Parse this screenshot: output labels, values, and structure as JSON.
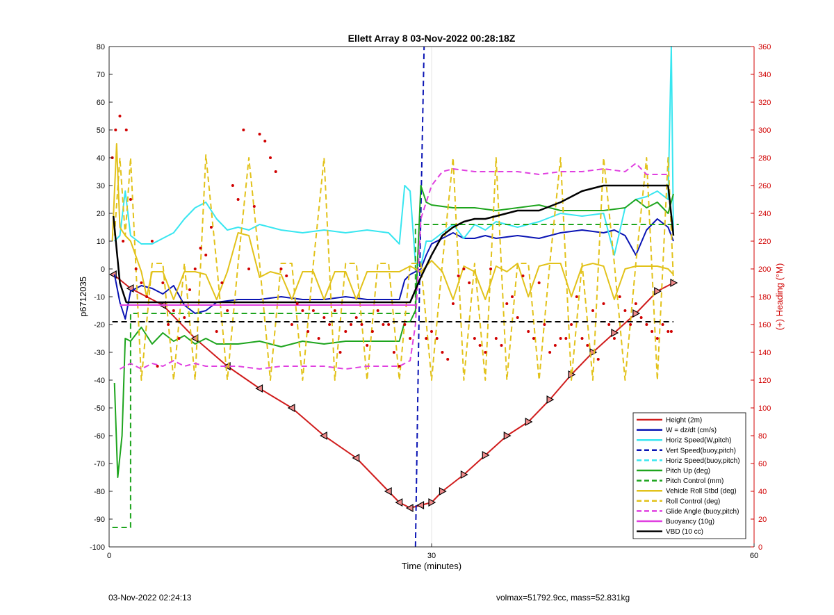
{
  "chart_data": {
    "type": "line",
    "title": "Ellett Array 8 03-Nov-2022 00:28:18Z",
    "xlabel": "Time (minutes)",
    "ylabel": "p6712035",
    "y2label": "(+) Heading (°M)",
    "xlim": [
      0,
      60
    ],
    "ylim": [
      -100,
      80
    ],
    "y2lim": [
      0,
      360
    ],
    "xticks": [
      "0",
      "30",
      "60"
    ],
    "yticks": [
      "-100",
      "-90",
      "-80",
      "-70",
      "-60",
      "-50",
      "-40",
      "-30",
      "-20",
      "-10",
      "0",
      "10",
      "20",
      "30",
      "40",
      "50",
      "60",
      "70",
      "80"
    ],
    "y2ticks": [
      "0",
      "20",
      "40",
      "60",
      "80",
      "100",
      "120",
      "140",
      "160",
      "180",
      "200",
      "220",
      "240",
      "260",
      "280",
      "300",
      "320",
      "340",
      "360"
    ],
    "grid": "vertical line at 30",
    "legend_position": "bottom-right",
    "colors": {
      "height": "#d01c1c",
      "w": "#0a14b4",
      "horiz_w": "#38e6f0",
      "vert_buoy": "#0a14b4",
      "horiz_buoy": "#38e6f0",
      "pitch": "#1ea51e",
      "pitch_ctrl": "#1ea51e",
      "roll": "#e2c21a",
      "roll_ctrl": "#e2c21a",
      "glide": "#e040e0",
      "buoyancy": "#e040e0",
      "vbd": "#000000",
      "heading": "#d00000",
      "right_axis": "#d00000"
    },
    "series": [
      {
        "key": "height",
        "name": "Height (2m)",
        "style": "solid",
        "marker": "triangle",
        "x": [
          0.4,
          2,
          5,
          8,
          11,
          14,
          17,
          20,
          23,
          26,
          27,
          28,
          29,
          30,
          31,
          33,
          35,
          37,
          39,
          41,
          43,
          45,
          47,
          49,
          51,
          52.5
        ],
        "y": [
          -2,
          -7,
          -13,
          -25,
          -35,
          -43,
          -50,
          -60,
          -68,
          -80,
          -84,
          -86,
          -85,
          -84,
          -80,
          -74,
          -67,
          -60,
          -55,
          -47,
          -38,
          -30,
          -23,
          -16,
          -8,
          -5
        ]
      },
      {
        "key": "w",
        "name": "W = dz/dt (cm/s)",
        "style": "solid",
        "x": [
          0.5,
          1,
          1.5,
          2,
          3,
          4,
          5,
          6,
          7,
          8,
          9,
          10,
          12,
          14,
          16,
          18,
          20,
          22,
          24,
          26,
          27,
          27.5,
          28,
          29,
          29.5,
          30,
          31,
          32,
          33,
          34,
          35,
          36,
          38,
          40,
          42,
          44,
          46,
          47,
          48,
          49,
          50,
          51,
          52,
          52.5
        ],
        "y": [
          -2,
          -12,
          -18,
          -8,
          -6,
          -7,
          -9,
          -6,
          -13,
          -16,
          -15,
          -12,
          -11,
          -11,
          -10,
          -11,
          -11,
          -10,
          -11,
          -11,
          -11,
          -4,
          -2,
          0,
          5,
          9,
          11,
          13,
          11,
          11,
          12,
          11,
          12,
          11,
          13,
          14,
          13,
          14,
          12,
          5,
          14,
          18,
          15,
          10
        ]
      },
      {
        "key": "horiz_w",
        "name": "Horiz Speed(W,pitch)",
        "style": "solid",
        "x": [
          0.5,
          1,
          1.5,
          2,
          3,
          4,
          5,
          6,
          7,
          8,
          9,
          10,
          11,
          12,
          13,
          14,
          16,
          18,
          20,
          22,
          24,
          26,
          27,
          27.5,
          28,
          28.5,
          29,
          29.5,
          30,
          31,
          32,
          33,
          34,
          35,
          36,
          38,
          40,
          42,
          44,
          46,
          47,
          48,
          49,
          50,
          51,
          52,
          52.3,
          52.5
        ],
        "y": [
          10,
          12,
          28,
          12,
          9,
          9,
          11,
          13,
          18,
          22,
          24,
          18,
          14,
          15,
          14,
          16,
          14,
          13,
          14,
          13,
          14,
          13,
          9,
          30,
          28,
          2,
          1,
          10,
          10,
          13,
          16,
          11,
          16,
          14,
          17,
          15,
          17,
          20,
          19,
          20,
          5,
          22,
          25,
          26,
          28,
          25,
          80,
          12
        ]
      },
      {
        "key": "vert_buoy",
        "name": "Vert Speed(buoy,pitch)",
        "style": "dashed",
        "x": [
          28.5,
          28.9,
          29.3
        ],
        "y": [
          -100,
          0,
          80
        ]
      },
      {
        "key": "horiz_buoy",
        "name": "Horiz Speed(buoy,pitch)",
        "style": "dashed",
        "x": [],
        "y": []
      },
      {
        "key": "pitch",
        "name": "Pitch Up (deg)",
        "style": "solid",
        "x": [
          0.5,
          0.8,
          1.2,
          1.5,
          2,
          3,
          4,
          5,
          6,
          7,
          8,
          9,
          10,
          12,
          14,
          16,
          18,
          20,
          22,
          24,
          26,
          27,
          27.5,
          28,
          28.5,
          29,
          29.5,
          30,
          32,
          34,
          36,
          38,
          40,
          42,
          44,
          46,
          48,
          49,
          50,
          51,
          52,
          52.5
        ],
        "y": [
          -41,
          -75,
          -60,
          -25,
          -26,
          -21,
          -27,
          -23,
          -26,
          -24,
          -27,
          -25,
          -27,
          -27,
          -26,
          -28,
          -26,
          -27,
          -26,
          -26,
          -26,
          -26,
          -19,
          -19,
          -15,
          30,
          24,
          23,
          22,
          22,
          21,
          22,
          23,
          21,
          21,
          21,
          22,
          25,
          22,
          24,
          20,
          27
        ]
      },
      {
        "key": "pitch_ctrl",
        "name": "Pitch Control (mm)",
        "style": "dashed",
        "x": [
          0.3,
          2,
          2,
          28.5,
          28.5,
          53
        ],
        "y": [
          -93,
          -93,
          -16,
          -16,
          16,
          16
        ]
      },
      {
        "key": "roll",
        "name": "Vehicle Roll Stbd (deg)",
        "style": "solid",
        "x": [
          0.3,
          0.7,
          1,
          1.5,
          2,
          3,
          3.5,
          4,
          5,
          6,
          7,
          8,
          9,
          10,
          11,
          12,
          13,
          14,
          15,
          16,
          17,
          18,
          19,
          20,
          21,
          22,
          23,
          24,
          25,
          26,
          27,
          28,
          29,
          30,
          31,
          32,
          33,
          34,
          35,
          36,
          37,
          38,
          39,
          40,
          41,
          42,
          43,
          44,
          45,
          46,
          47,
          48,
          49,
          50,
          51,
          52,
          52.5
        ],
        "y": [
          10,
          45,
          15,
          12,
          10,
          -1,
          -10,
          -1,
          -1,
          -11,
          -1,
          -1,
          -2,
          -11,
          -1,
          13,
          12,
          -3,
          -1,
          -2,
          -11,
          -1,
          -1,
          -11,
          -1,
          -1,
          -11,
          -1,
          -1,
          -1,
          -1,
          1,
          -1,
          3,
          -1,
          -11,
          1,
          -1,
          -11,
          1,
          -1,
          2,
          -10,
          1,
          2,
          2,
          -10,
          1,
          2,
          1,
          -11,
          0,
          1,
          1,
          1,
          0,
          -2
        ]
      },
      {
        "key": "roll_ctrl",
        "name": "Roll Control (deg)",
        "style": "dashed",
        "x": [
          0.5,
          1,
          1.5,
          2,
          3,
          4,
          5,
          6,
          7,
          8,
          9,
          10,
          11,
          12,
          13,
          14,
          15,
          16,
          17,
          18,
          19,
          20,
          21,
          22,
          23,
          24,
          25,
          26,
          27,
          28,
          29,
          30,
          31,
          32,
          33,
          34,
          35,
          36,
          37,
          38,
          39,
          40,
          41,
          42,
          43,
          44,
          45,
          46,
          47,
          48,
          49,
          50,
          51,
          52,
          52.5
        ],
        "y": [
          12,
          40,
          12,
          40,
          -40,
          2,
          2,
          -40,
          2,
          -40,
          41,
          2,
          -40,
          2,
          40,
          2,
          -40,
          2,
          2,
          -40,
          2,
          40,
          -40,
          2,
          2,
          -40,
          2,
          2,
          -40,
          2,
          2,
          -40,
          2,
          40,
          -40,
          2,
          -40,
          40,
          -40,
          2,
          2,
          -40,
          2,
          40,
          -40,
          2,
          -40,
          40,
          2,
          -40,
          2,
          40,
          -40,
          40,
          -4
        ]
      },
      {
        "key": "glide",
        "name": "Glide Angle (buoy,pitch)",
        "style": "dashed",
        "x": [
          1,
          2,
          3,
          4,
          5,
          6,
          7,
          8,
          9,
          10,
          12,
          14,
          16,
          18,
          20,
          22,
          24,
          26,
          27,
          28,
          28.5,
          29,
          30,
          31,
          32,
          34,
          36,
          38,
          40,
          42,
          44,
          46,
          48,
          49,
          50,
          51,
          52
        ],
        "y": [
          -36,
          -34,
          -36,
          -34,
          -35,
          -33,
          -35,
          -34,
          -35,
          -35,
          -35,
          -36,
          -35,
          -35,
          -35,
          -36,
          -35,
          -35,
          -35,
          -33,
          -20,
          18,
          30,
          35,
          36,
          35,
          35,
          35,
          34,
          35,
          35,
          36,
          35,
          38,
          34,
          34,
          34
        ]
      },
      {
        "key": "buoyancy",
        "name": "Buoyancy (10g)",
        "style": "solid",
        "x": [
          1,
          28.5
        ],
        "y": [
          -13,
          -13
        ]
      },
      {
        "key": "vbd",
        "name": "VBD (10 cc)",
        "style": "solid",
        "x": [
          0.4,
          1,
          1.6,
          28,
          29,
          30,
          31,
          32,
          33,
          34,
          35,
          36,
          37,
          38,
          40,
          42,
          44,
          46,
          48,
          50,
          52,
          52.5
        ],
        "y": [
          19,
          -5,
          -12,
          -12,
          -3,
          5,
          12,
          15,
          17,
          18,
          18,
          19,
          20,
          21,
          21,
          24,
          28,
          30,
          30,
          30,
          30,
          12
        ]
      },
      {
        "key": "heading",
        "name": "",
        "style": "points",
        "axis": "right",
        "x": [
          0.3,
          0.6,
          1,
          1.3,
          1.6,
          2,
          2.5,
          3,
          3.5,
          4,
          4.5,
          5,
          5.5,
          6,
          6.5,
          7,
          7.5,
          8,
          8.5,
          9,
          9.5,
          10,
          10.5,
          11,
          11.5,
          12,
          12.5,
          13,
          13.5,
          14,
          14.5,
          15,
          15.5,
          16,
          16.5,
          17,
          17.5,
          18,
          18.5,
          19,
          19.5,
          20,
          20.5,
          21,
          21.5,
          22,
          22.5,
          23,
          23.5,
          24,
          24.5,
          25,
          25.5,
          26,
          26.5,
          27,
          27.5,
          28,
          29.5,
          30,
          30.5,
          31,
          31.5,
          32,
          32.5,
          33,
          33.5,
          34,
          34.5,
          35,
          35.5,
          36,
          36.5,
          37,
          37.5,
          38,
          38.5,
          39,
          39.5,
          40,
          40.5,
          41,
          41.5,
          42,
          42.5,
          43,
          43.5,
          44,
          44.5,
          45,
          45.5,
          46,
          46.5,
          47,
          47.5,
          48,
          48.5,
          49,
          49.5,
          50,
          50.5,
          51,
          51.5,
          52,
          52.3
        ],
        "y": [
          280,
          300,
          310,
          220,
          300,
          250,
          200,
          190,
          180,
          220,
          130,
          190,
          160,
          170,
          150,
          165,
          185,
          200,
          215,
          210,
          230,
          155,
          190,
          170,
          260,
          250,
          300,
          200,
          245,
          297,
          292,
          280,
          270,
          200,
          195,
          160,
          175,
          170,
          155,
          170,
          150,
          165,
          160,
          170,
          140,
          155,
          160,
          165,
          160,
          145,
          155,
          170,
          160,
          160,
          140,
          130,
          160,
          150,
          150,
          155,
          150,
          140,
          135,
          175,
          195,
          200,
          190,
          150,
          145,
          140,
          200,
          150,
          145,
          175,
          180,
          165,
          195,
          155,
          150,
          190,
          160,
          140,
          145,
          150,
          150,
          160,
          180,
          150,
          145,
          170,
          135,
          175,
          160,
          150,
          180,
          170,
          160,
          175,
          165,
          160,
          155,
          150,
          160,
          155,
          155
        ]
      },
      {
        "key": "heading_mean",
        "name": "",
        "style": "dashed",
        "axis": "right",
        "x": [
          0.3,
          52.5
        ],
        "y": [
          162,
          162
        ]
      }
    ]
  },
  "footer": {
    "date": "03-Nov-2022 02:24:13",
    "stats": "volmax=51792.9cc, mass=52.831kg"
  }
}
